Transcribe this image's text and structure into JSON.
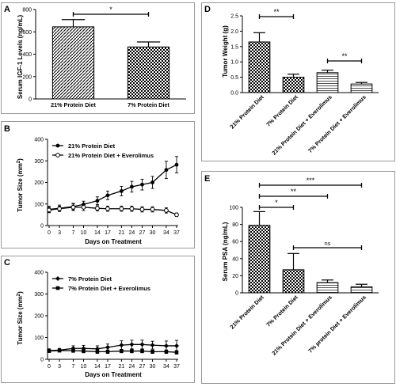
{
  "chart_data": [
    {
      "panel": "A",
      "type": "bar",
      "ylabel": "Serum IGF-1 Levels (ng/mL)",
      "ylim": [
        0,
        800
      ],
      "yticks": [
        0,
        200,
        400,
        600,
        800
      ],
      "categories": [
        "21% Protein Diet",
        "7% Protein Diet"
      ],
      "values": [
        645,
        465
      ],
      "errors": [
        65,
        45
      ],
      "patterns": [
        "diag",
        "check"
      ],
      "significance": [
        {
          "from": 0,
          "to": 1,
          "label": "*"
        }
      ]
    },
    {
      "panel": "B",
      "type": "line",
      "xlabel": "Days on Treatment",
      "ylabel": "Tumor Size (mm",
      "ylabel_sup": "2",
      "ylabel_tail": ")",
      "ylim": [
        0,
        400
      ],
      "yticks": [
        0,
        100,
        200,
        300,
        400
      ],
      "x": [
        0,
        3,
        7,
        10,
        14,
        17,
        21,
        24,
        27,
        30,
        34,
        37
      ],
      "series": [
        {
          "name": "21% Protein Diet",
          "marker": "filled",
          "values": [
            75,
            80,
            88,
            98,
            115,
            140,
            160,
            180,
            190,
            200,
            258,
            282
          ],
          "errors": [
            15,
            15,
            15,
            15,
            18,
            20,
            22,
            25,
            25,
            28,
            40,
            38
          ]
        },
        {
          "name": "21% Protein Diet + Everolimus",
          "marker": "open",
          "values": [
            72,
            78,
            85,
            85,
            80,
            78,
            78,
            78,
            75,
            75,
            70,
            50
          ],
          "errors": [
            12,
            12,
            15,
            15,
            12,
            12,
            12,
            12,
            12,
            12,
            12,
            8
          ]
        }
      ]
    },
    {
      "panel": "C",
      "type": "line",
      "xlabel": "Days on Treatment",
      "ylabel": "Tumor Size (mm",
      "ylabel_sup": "2",
      "ylabel_tail": ")",
      "ylim": [
        0,
        400
      ],
      "yticks": [
        0,
        100,
        200,
        300,
        400
      ],
      "x": [
        0,
        3,
        7,
        10,
        14,
        17,
        21,
        24,
        27,
        30,
        34,
        37
      ],
      "series": [
        {
          "name": "7% Protein Diet",
          "marker": "diamond",
          "values": [
            40,
            42,
            50,
            50,
            48,
            55,
            65,
            68,
            68,
            65,
            62,
            62
          ],
          "errors": [
            8,
            8,
            12,
            14,
            14,
            15,
            20,
            20,
            20,
            18,
            22,
            25
          ]
        },
        {
          "name": "7% Protein Diet + Everolimus",
          "marker": "square",
          "values": [
            38,
            40,
            40,
            38,
            35,
            35,
            38,
            38,
            38,
            35,
            35,
            32
          ],
          "errors": [
            6,
            6,
            8,
            8,
            8,
            8,
            8,
            8,
            8,
            8,
            8,
            8
          ]
        }
      ]
    },
    {
      "panel": "D",
      "type": "bar",
      "ylabel": "Tumor Weight (g)",
      "ylim": [
        0,
        2.5
      ],
      "yticks": [
        "0.0",
        "0.5",
        "1.0",
        "1.5",
        "2.0",
        "2.5"
      ],
      "ytick_values": [
        0,
        0.5,
        1.0,
        1.5,
        2.0,
        2.5
      ],
      "categories": [
        "21% Protein Diet",
        "7% Protein Diet",
        "21% Protein Diet + Everolimus",
        "7% Protein Diet + Everolimus"
      ],
      "values": [
        1.65,
        0.5,
        0.65,
        0.28
      ],
      "errors": [
        0.3,
        0.1,
        0.08,
        0.05
      ],
      "patterns": [
        "check",
        "check",
        "hlines",
        "hlines"
      ],
      "significance": [
        {
          "from": 0,
          "to": 1,
          "label": "**"
        },
        {
          "from": 2,
          "to": 3,
          "label": "**"
        }
      ]
    },
    {
      "panel": "E",
      "type": "bar",
      "ylabel": "Serum PSA (ng/mL)",
      "ylim": [
        0,
        100
      ],
      "yticks": [
        0,
        20,
        40,
        60,
        80,
        100
      ],
      "categories": [
        "21% Protein Diet",
        "7% Protein Diet",
        "21% Protein Diet + Everolimus",
        "7% protein Diet + Everolimus"
      ],
      "values": [
        79,
        27,
        12,
        7
      ],
      "errors": [
        16,
        19,
        3,
        3
      ],
      "patterns": [
        "check",
        "check",
        "hlines",
        "hlines"
      ],
      "significance": [
        {
          "from": 0,
          "to": 1,
          "label": "*"
        },
        {
          "from": 0,
          "to": 2,
          "label": "**"
        },
        {
          "from": 0,
          "to": 3,
          "label": "***"
        },
        {
          "from": 1,
          "to": 3,
          "label": "ns"
        }
      ]
    }
  ]
}
